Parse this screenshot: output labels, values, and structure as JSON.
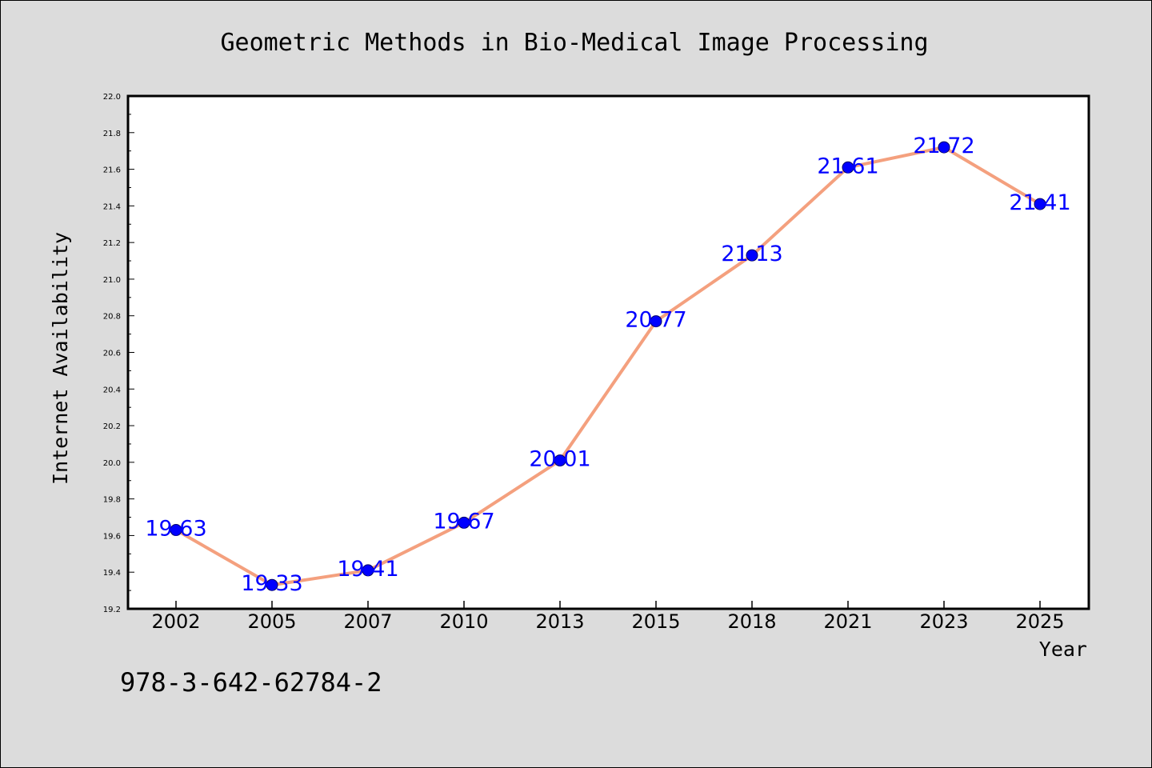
{
  "chart_data": {
    "type": "line",
    "title": "Geometric Methods in Bio-Medical Image Processing",
    "xlabel": "Year",
    "ylabel": "Internet Availability",
    "categories": [
      "2002",
      "2005",
      "2007",
      "2010",
      "2013",
      "2015",
      "2018",
      "2021",
      "2023",
      "2025"
    ],
    "series": [
      {
        "values": [
          19.63,
          19.33,
          19.41,
          19.67,
          20.01,
          20.77,
          21.13,
          21.61,
          21.72,
          21.41
        ]
      }
    ],
    "data_labels": [
      "19.63",
      "19.33",
      "19.41",
      "19.67",
      "20.01",
      "20.77",
      "21.13",
      "21.61",
      "21.72",
      "21.41"
    ],
    "ylim": [
      19.2,
      22.0
    ],
    "yticks": [
      "19.2",
      "19.4",
      "19.6",
      "19.8",
      "20.0",
      "20.2",
      "20.4",
      "20.6",
      "20.8",
      "21.0",
      "21.2",
      "21.4",
      "21.6",
      "21.8",
      "22.0"
    ],
    "grid": false,
    "legend": "none",
    "colors": {
      "line": "#f4a07e",
      "marker": "#0000ff",
      "marker_edge": "#000066",
      "data_label": "#0000ff",
      "plot_background": "#ffffff",
      "figure_background": "#dcdcdc"
    }
  },
  "footer": {
    "isbn": "978-3-642-62784-2"
  }
}
